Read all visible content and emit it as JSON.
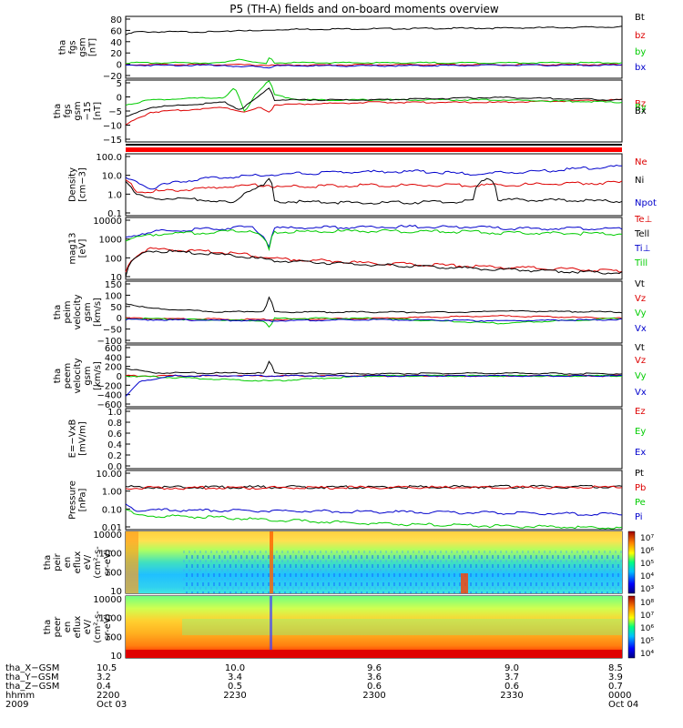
{
  "title": "P5 (TH-A) fields and on-board moments overview",
  "colors": {
    "black": "#000000",
    "red": "#dd0000",
    "green": "#00cc00",
    "blue": "#0000cc",
    "flag_red": "#ff0000"
  },
  "colorbar_ticks": {
    "eir": [
      "10⁷",
      "10⁶",
      "10⁵",
      "10⁴",
      "10³"
    ],
    "eer": [
      "10⁸",
      "10⁷",
      "10⁶",
      "10⁵",
      "10⁴"
    ]
  },
  "chart_data": [
    {
      "type": "line",
      "panel": "fgs_gsm",
      "ylabel": [
        "tha",
        "fgs",
        "gsm",
        "[nT]"
      ],
      "yticks": [
        "80",
        "60",
        "40",
        "20",
        "0",
        "−20"
      ],
      "ylim": [
        -20,
        80
      ],
      "series": [
        {
          "name": "Bt",
          "color": "black",
          "x": [
            0,
            0.02,
            0.2,
            0.23,
            0.26,
            0.29,
            0.32,
            0.5,
            0.75,
            1
          ],
          "values": [
            50,
            55,
            55,
            58,
            56,
            58,
            59,
            60,
            61,
            63
          ]
        },
        {
          "name": "bz",
          "color": "red",
          "x": [
            0,
            0.2,
            0.3,
            0.5,
            0.75,
            1
          ],
          "values": [
            2,
            2,
            1,
            2,
            2,
            2
          ]
        },
        {
          "name": "by",
          "color": "green",
          "x": [
            0,
            0.2,
            0.23,
            0.26,
            0.285,
            0.29,
            0.3,
            0.5,
            0.75,
            1
          ],
          "values": [
            5,
            5,
            12,
            5,
            3,
            15,
            5,
            5,
            5,
            5
          ]
        },
        {
          "name": "bx",
          "color": "blue",
          "x": [
            0,
            0.2,
            0.23,
            0.26,
            0.29,
            0.3,
            0.5,
            0.75,
            1
          ],
          "values": [
            1,
            1,
            -2,
            0,
            -3,
            0,
            0,
            1,
            1
          ]
        }
      ]
    },
    {
      "type": "line",
      "panel": "fgs_gsm_zoom",
      "ylabel": [
        "tha",
        "fgs",
        "gsm",
        "−15",
        "[nT]"
      ],
      "yticks": [
        "5",
        "0",
        "−5",
        "−10",
        "−15"
      ],
      "ylim": [
        -17,
        8
      ],
      "series": [
        {
          "name": "Bz",
          "color": "red",
          "x": [
            0,
            0.05,
            0.2,
            0.24,
            0.27,
            0.29,
            0.3,
            0.5,
            0.75,
            1
          ],
          "values": [
            -10,
            -5,
            -3,
            -5,
            -3,
            -5,
            -2,
            -1,
            -1,
            0
          ]
        },
        {
          "name": "By",
          "color": "green",
          "x": [
            0,
            0.05,
            0.2,
            0.22,
            0.24,
            0.26,
            0.29,
            0.3,
            0.35,
            0.5,
            0.75,
            1
          ],
          "values": [
            -2,
            0,
            1,
            5,
            -5,
            2,
            8,
            2,
            0,
            0,
            0,
            -1
          ]
        },
        {
          "name": "Bx",
          "color": "black",
          "x": [
            0,
            0.05,
            0.2,
            0.23,
            0.26,
            0.29,
            0.3,
            0.5,
            0.75,
            1
          ],
          "values": [
            -7,
            -3,
            -1,
            -4,
            0,
            5,
            0,
            0,
            1,
            0
          ]
        }
      ]
    },
    {
      "type": "line",
      "panel": "density",
      "scale": "log",
      "ylabel": [
        "Density",
        "[cm−3]"
      ],
      "yticks": [
        "100.0",
        "10.0",
        "1.0",
        "0.1"
      ],
      "ylim": [
        0.1,
        100
      ],
      "series": [
        {
          "name": "Ne",
          "color": "red",
          "x": [
            0,
            0.02,
            0.05,
            0.15,
            0.25,
            0.29,
            0.3,
            0.5,
            0.75,
            1
          ],
          "values": [
            5,
            1.5,
            1.5,
            2,
            3,
            3,
            2.5,
            3,
            3,
            4
          ]
        },
        {
          "name": "Ni",
          "color": "black",
          "x": [
            0,
            0.02,
            0.05,
            0.15,
            0.22,
            0.28,
            0.29,
            0.3,
            0.5,
            0.7,
            0.73,
            0.75,
            1
          ],
          "values": [
            5,
            1,
            0.7,
            0.6,
            0.4,
            3,
            6,
            0.5,
            0.4,
            0.5,
            8,
            0.6,
            0.5
          ]
        },
        {
          "name": "Npot",
          "color": "blue",
          "x": [
            0,
            0.05,
            0.15,
            0.3,
            0.45,
            0.6,
            0.7,
            0.75,
            0.85,
            1
          ],
          "values": [
            6,
            2,
            6,
            10,
            13,
            14,
            10,
            12,
            15,
            25
          ]
        }
      ]
    },
    {
      "type": "line",
      "panel": "temperature",
      "scale": "log",
      "ylabel": [
        "mag13",
        "[eV]"
      ],
      "yticks": [
        "10000",
        "1000",
        "100",
        "10"
      ],
      "ylim": [
        10,
        10000
      ],
      "series": [
        {
          "name": "Te⊥",
          "color": "red",
          "x": [
            0,
            0.05,
            0.2,
            0.3,
            0.5,
            0.75,
            1
          ],
          "values": [
            20,
            300,
            200,
            100,
            60,
            40,
            25
          ]
        },
        {
          "name": "Tell",
          "color": "black",
          "x": [
            0,
            0.05,
            0.2,
            0.3,
            0.5,
            0.75,
            1
          ],
          "values": [
            15,
            250,
            150,
            80,
            50,
            30,
            20
          ]
        },
        {
          "name": "Ti⊥",
          "color": "blue",
          "x": [
            0,
            0.05,
            0.2,
            0.25,
            0.29,
            0.3,
            0.5,
            0.7,
            0.75,
            1
          ],
          "values": [
            1000,
            2000,
            3000,
            3500,
            300,
            3000,
            3500,
            3500,
            3000,
            2800
          ]
        },
        {
          "name": "Till",
          "color": "green",
          "x": [
            0,
            0.05,
            0.2,
            0.25,
            0.29,
            0.3,
            0.5,
            0.7,
            0.75,
            1
          ],
          "values": [
            800,
            1500,
            2000,
            2500,
            200,
            2000,
            2200,
            2000,
            1800,
            1600
          ]
        }
      ]
    },
    {
      "type": "line",
      "panel": "peim_velocity",
      "ylabel": [
        "tha",
        "peim",
        "velocity",
        "gsm",
        "[km/s]"
      ],
      "yticks": [
        "150",
        "100",
        "50",
        "0",
        "−50",
        "−100"
      ],
      "ylim": [
        -100,
        150
      ],
      "series": [
        {
          "name": "Vt",
          "color": "black",
          "x": [
            0,
            0.05,
            0.2,
            0.28,
            0.29,
            0.3,
            0.5,
            0.7,
            0.75,
            1
          ],
          "values": [
            60,
            40,
            25,
            30,
            90,
            25,
            25,
            25,
            30,
            25
          ]
        },
        {
          "name": "Vz",
          "color": "red",
          "x": [
            0,
            0.3,
            0.5,
            0.75,
            1
          ],
          "values": [
            0,
            -5,
            0,
            10,
            0
          ]
        },
        {
          "name": "Vy",
          "color": "green",
          "x": [
            0,
            0.28,
            0.29,
            0.3,
            0.5,
            0.75,
            1
          ],
          "values": [
            0,
            -10,
            -40,
            0,
            0,
            -20,
            0
          ]
        },
        {
          "name": "Vx",
          "color": "blue",
          "x": [
            0,
            0.3,
            0.5,
            0.75,
            1
          ],
          "values": [
            -5,
            -10,
            -5,
            -10,
            -5
          ]
        }
      ]
    },
    {
      "type": "line",
      "panel": "peem_velocity",
      "ylabel": [
        "tha",
        "peem",
        "velocity",
        "gsm",
        "[km/s]"
      ],
      "yticks": [
        "600",
        "400",
        "200",
        "0",
        "−200",
        "−400",
        "−600"
      ],
      "ylim": [
        -600,
        600
      ],
      "series": [
        {
          "name": "Vt",
          "color": "black",
          "x": [
            0,
            0.05,
            0.28,
            0.29,
            0.3,
            0.5,
            0.75,
            1
          ],
          "values": [
            150,
            60,
            50,
            300,
            50,
            40,
            50,
            40
          ]
        },
        {
          "name": "Vz",
          "color": "red",
          "x": [
            0,
            0.5,
            1
          ],
          "values": [
            0,
            0,
            0
          ]
        },
        {
          "name": "Vy",
          "color": "green",
          "x": [
            0,
            0.29,
            0.5,
            1
          ],
          "values": [
            0,
            -100,
            0,
            0
          ]
        },
        {
          "name": "Vx",
          "color": "blue",
          "x": [
            0,
            0.03,
            0.1,
            0.5,
            1
          ],
          "values": [
            -400,
            -100,
            0,
            0,
            0
          ]
        }
      ]
    },
    {
      "type": "line",
      "panel": "efield",
      "ylabel": [
        "E=−VxB",
        "[mV/m]"
      ],
      "yticks": [
        "1.0",
        "0.8",
        "0.6",
        "0.4",
        "0.2",
        "0.0"
      ],
      "ylim": [
        0,
        1
      ],
      "series": [
        {
          "name": "Ez",
          "color": "red",
          "x": [],
          "values": []
        },
        {
          "name": "Ey",
          "color": "green",
          "x": [],
          "values": []
        },
        {
          "name": "Ex",
          "color": "blue",
          "x": [],
          "values": []
        }
      ]
    },
    {
      "type": "line",
      "panel": "pressure",
      "scale": "log",
      "ylabel": [
        "Pressure",
        "[nPa]"
      ],
      "yticks": [
        "10.00",
        "1.00",
        "0.10",
        "0.01"
      ],
      "ylim": [
        0.01,
        10
      ],
      "series": [
        {
          "name": "Pt",
          "color": "black",
          "x": [
            0,
            0.02,
            1
          ],
          "values": [
            1.5,
            1.4,
            1.5
          ]
        },
        {
          "name": "Pb",
          "color": "red",
          "x": [
            0,
            0.02,
            1
          ],
          "values": [
            1.3,
            1.3,
            1.4
          ]
        },
        {
          "name": "Pe",
          "color": "green",
          "x": [
            0,
            0.02,
            0.05,
            0.2,
            0.3,
            0.5,
            0.75,
            1
          ],
          "values": [
            0.1,
            0.05,
            0.05,
            0.04,
            0.03,
            0.02,
            0.015,
            0.012
          ]
        },
        {
          "name": "Pi",
          "color": "blue",
          "x": [
            0,
            0.02,
            0.3,
            0.5,
            0.75,
            1
          ],
          "values": [
            0.2,
            0.1,
            0.09,
            0.08,
            0.07,
            0.06
          ]
        }
      ]
    },
    {
      "type": "heatmap",
      "panel": "peir_eflux",
      "scale": "log",
      "ylabel": [
        "tha",
        "peir",
        "en",
        "eflux",
        "eV/",
        "(cm²-s-",
        "sr-eV)"
      ],
      "yticks": [
        "10000",
        "1000",
        "100",
        "10"
      ],
      "ylim": [
        7,
        25000
      ]
    },
    {
      "type": "heatmap",
      "panel": "peer_eflux",
      "scale": "log",
      "ylabel": [
        "tha",
        "peer",
        "en",
        "eflux",
        "eV/",
        "(cm²-s-",
        "sr-eV)"
      ],
      "yticks": [
        "10000",
        "1000",
        "100",
        "10"
      ],
      "ylim": [
        7,
        25000
      ]
    }
  ],
  "x_axis": {
    "row_labels": [
      "tha_X−GSM",
      "tha_Y−GSM",
      "tha_Z−GSM",
      "hhmm",
      "2009"
    ],
    "columns": [
      {
        "values": [
          "10.5",
          "3.2",
          "0.4",
          "2200",
          "Oct 03"
        ]
      },
      {
        "values": [
          "10.0",
          "3.4",
          "0.5",
          "2230",
          ""
        ]
      },
      {
        "values": [
          "9.6",
          "3.6",
          "0.6",
          "2300",
          ""
        ]
      },
      {
        "values": [
          "9.0",
          "3.7",
          "0.6",
          "2330",
          ""
        ]
      },
      {
        "values": [
          "8.5",
          "3.9",
          "0.7",
          "0000",
          "Oct 04"
        ]
      }
    ]
  }
}
